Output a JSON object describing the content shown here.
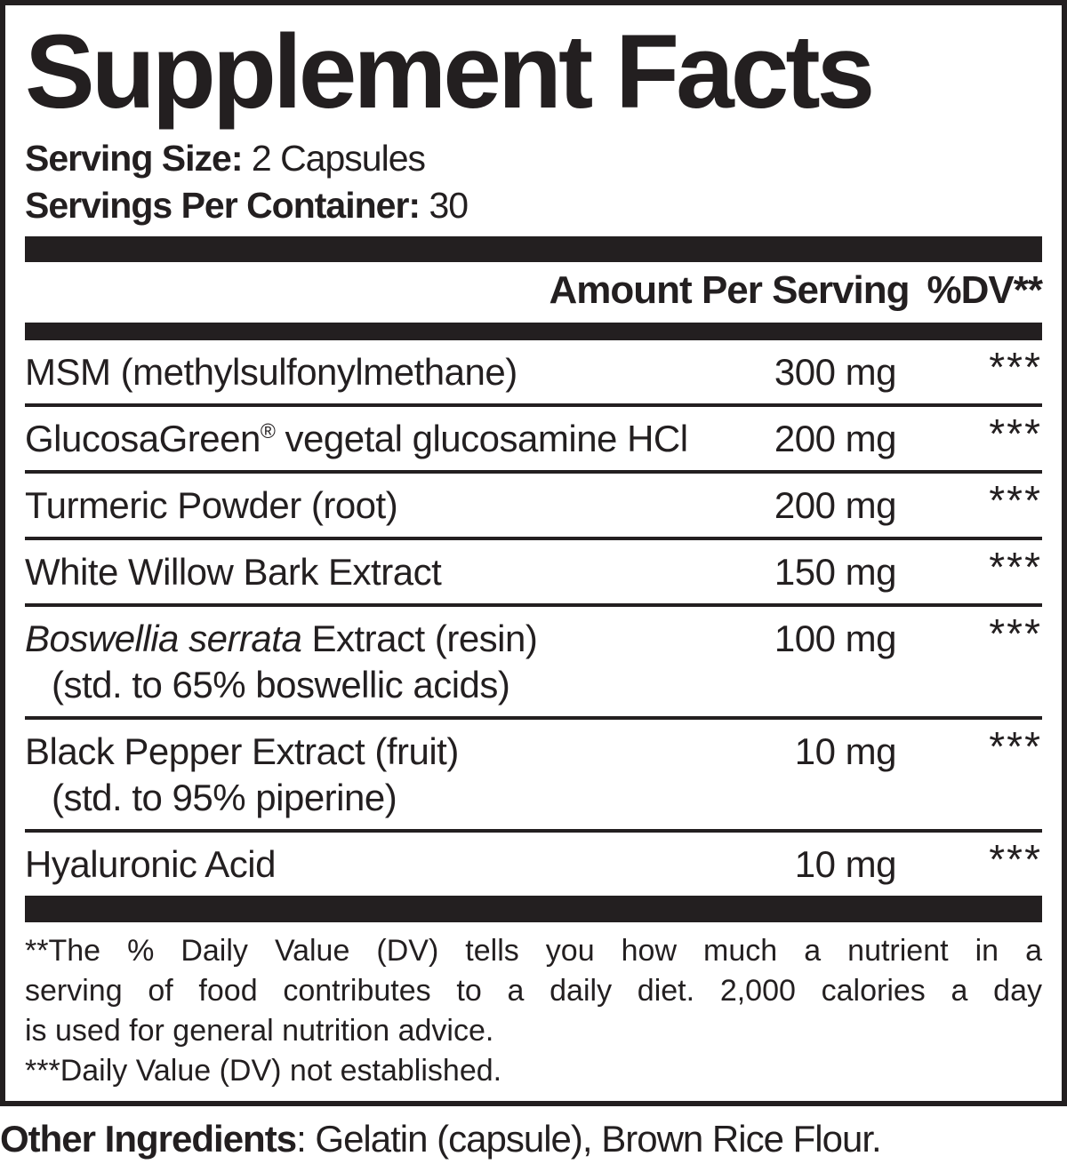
{
  "colors": {
    "ink": "#231f20",
    "background": "#ffffff"
  },
  "label": {
    "title": "Supplement Facts",
    "serving_size_label": "Serving Size:",
    "serving_size_value": " 2 Capsules",
    "servings_per_container_label": "Servings Per Container:",
    "servings_per_container_value": " 30",
    "header": {
      "amount": "Amount Per Serving",
      "dv": "%DV**"
    },
    "rows": [
      {
        "name": "MSM (methylsulfonylmethane)",
        "amount": "300 mg",
        "dv": "***"
      },
      {
        "name_pre": "GlucosaGreen",
        "trademark": "®",
        "name_post": " vegetal glucosamine HCl",
        "amount": "200 mg",
        "dv": "***"
      },
      {
        "name": "Turmeric Powder (root)",
        "amount": "200 mg",
        "dv": "***"
      },
      {
        "name": "White Willow Bark Extract",
        "amount": "150 mg",
        "dv": "***"
      },
      {
        "name_italic": "Boswellia serrata",
        "name_rest": " Extract (resin)",
        "subline": "(std. to 65% boswellic acids)",
        "amount": "100 mg",
        "dv": "***"
      },
      {
        "name": "Black Pepper Extract (fruit)",
        "subline": "(std. to 95% piperine)",
        "amount": "10 mg",
        "dv": "***"
      },
      {
        "name": "Hyaluronic Acid",
        "amount": "10 mg",
        "dv": "***"
      }
    ],
    "footnote_lines": [
      "**The % Daily Value (DV) tells you how much a nutrient in a",
      "serving of food contributes to a daily diet. 2,000 calories a day",
      "is used for general nutrition advice.",
      "***Daily Value (DV) not established."
    ],
    "other_ingredients_label": "Other Ingredients",
    "other_ingredients_value": ": Gelatin (capsule), Brown Rice Flour."
  }
}
